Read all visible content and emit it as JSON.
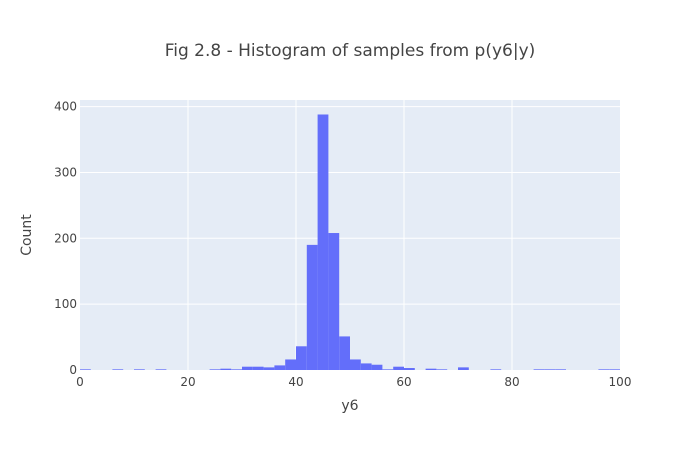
{
  "chart_data": {
    "type": "bar",
    "title": "Fig 2.8 - Histogram of samples from p(y6|y)",
    "xlabel": "y6",
    "ylabel": "Count",
    "xlim": [
      0,
      100
    ],
    "ylim": [
      0,
      410
    ],
    "xticks": [
      0,
      20,
      40,
      60,
      80,
      100
    ],
    "yticks": [
      0,
      100,
      200,
      300,
      400
    ],
    "grid": true,
    "bin_width": 2,
    "bins": [
      {
        "x0": 0,
        "count": 1
      },
      {
        "x0": 6,
        "count": 1
      },
      {
        "x0": 10,
        "count": 1
      },
      {
        "x0": 14,
        "count": 1
      },
      {
        "x0": 24,
        "count": 1
      },
      {
        "x0": 26,
        "count": 2
      },
      {
        "x0": 28,
        "count": 1
      },
      {
        "x0": 30,
        "count": 5
      },
      {
        "x0": 32,
        "count": 5
      },
      {
        "x0": 34,
        "count": 4
      },
      {
        "x0": 36,
        "count": 7
      },
      {
        "x0": 38,
        "count": 16
      },
      {
        "x0": 40,
        "count": 36
      },
      {
        "x0": 42,
        "count": 190
      },
      {
        "x0": 44,
        "count": 388
      },
      {
        "x0": 46,
        "count": 208
      },
      {
        "x0": 48,
        "count": 51
      },
      {
        "x0": 50,
        "count": 16
      },
      {
        "x0": 52,
        "count": 10
      },
      {
        "x0": 54,
        "count": 8
      },
      {
        "x0": 56,
        "count": 1
      },
      {
        "x0": 58,
        "count": 5
      },
      {
        "x0": 60,
        "count": 3
      },
      {
        "x0": 64,
        "count": 2
      },
      {
        "x0": 66,
        "count": 1
      },
      {
        "x0": 70,
        "count": 4
      },
      {
        "x0": 76,
        "count": 1
      },
      {
        "x0": 84,
        "count": 1
      },
      {
        "x0": 86,
        "count": 1
      },
      {
        "x0": 88,
        "count": 1
      },
      {
        "x0": 96,
        "count": 1
      },
      {
        "x0": 98,
        "count": 1
      }
    ],
    "colors": {
      "bar": "#636efa",
      "plot_bg": "#e5ecf6",
      "grid": "#ffffff",
      "text": "#444444"
    }
  }
}
